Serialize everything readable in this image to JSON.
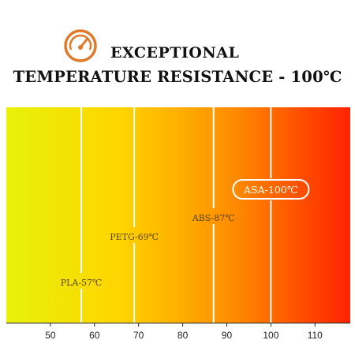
{
  "header": {
    "title_line1": "EXCEPTIONAL",
    "title_line2": "TEMPERATURE RESISTANCE - 100℃",
    "icon": "thermometer-gauge-icon",
    "icon_color": "#e07a2a"
  },
  "chart_data": {
    "type": "bar",
    "title": "EXCEPTIONAL TEMPERATURE RESISTANCE - 100℃",
    "xlabel": "",
    "ylabel": "",
    "xlim": [
      40,
      118
    ],
    "xticks": [
      50,
      60,
      70,
      80,
      90,
      100,
      110
    ],
    "grid": false,
    "gradient_colors": [
      "#e8f20a",
      "#ffd400",
      "#ff8a00",
      "#ff2200"
    ],
    "markers": [
      {
        "label": "PLA-57℃",
        "value": 57,
        "highlight": false
      },
      {
        "label": "PETG-69℃",
        "value": 69,
        "highlight": false
      },
      {
        "label": "ABS-87℃",
        "value": 87,
        "highlight": false
      },
      {
        "label": "ASA-100℃",
        "value": 100,
        "highlight": true
      }
    ]
  }
}
